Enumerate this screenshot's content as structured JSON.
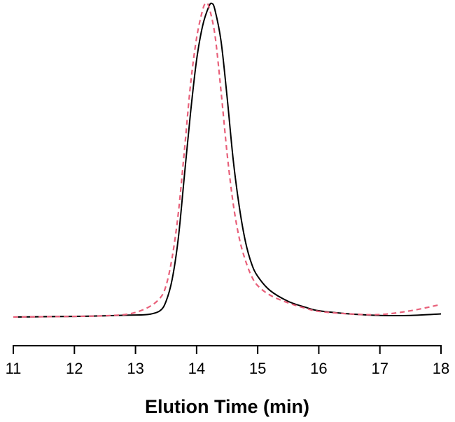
{
  "chart_data": {
    "type": "line",
    "title": "",
    "xlabel": "Elution Time (min)",
    "ylabel": "",
    "xlim": [
      11,
      18
    ],
    "ylim": [
      0,
      1.0
    ],
    "xticks": [
      "11",
      "12",
      "13",
      "14",
      "15",
      "16",
      "17",
      "18"
    ],
    "grid": false,
    "legend": "none",
    "series": [
      {
        "color": "#000000",
        "style": "solid",
        "x": [
          11.0,
          11.5,
          12.0,
          12.5,
          12.9,
          13.2,
          13.4,
          13.5,
          13.6,
          13.7,
          13.8,
          13.9,
          14.0,
          14.1,
          14.2,
          14.25,
          14.3,
          14.4,
          14.5,
          14.6,
          14.7,
          14.8,
          14.9,
          15.0,
          15.2,
          15.5,
          15.8,
          16.0,
          16.5,
          17.0,
          17.5,
          18.0
        ],
        "y": [
          0.0,
          0.001,
          0.002,
          0.004,
          0.006,
          0.008,
          0.02,
          0.05,
          0.12,
          0.25,
          0.45,
          0.65,
          0.82,
          0.93,
          0.99,
          1.0,
          0.98,
          0.88,
          0.7,
          0.5,
          0.35,
          0.24,
          0.17,
          0.13,
          0.085,
          0.05,
          0.03,
          0.02,
          0.01,
          0.005,
          0.005,
          0.01
        ]
      },
      {
        "color": "#e8607a",
        "style": "dashed",
        "x": [
          11.0,
          11.5,
          12.0,
          12.5,
          12.9,
          13.2,
          13.4,
          13.5,
          13.6,
          13.7,
          13.8,
          13.9,
          14.0,
          14.1,
          14.15,
          14.2,
          14.3,
          14.4,
          14.5,
          14.6,
          14.7,
          14.8,
          14.9,
          15.0,
          15.2,
          15.5,
          15.8,
          16.0,
          16.5,
          17.0,
          17.5,
          18.0
        ],
        "y": [
          0.0,
          0.001,
          0.002,
          0.004,
          0.01,
          0.03,
          0.06,
          0.1,
          0.19,
          0.33,
          0.53,
          0.74,
          0.89,
          0.98,
          1.0,
          0.99,
          0.9,
          0.72,
          0.52,
          0.36,
          0.25,
          0.18,
          0.13,
          0.1,
          0.07,
          0.045,
          0.027,
          0.018,
          0.01,
          0.008,
          0.02,
          0.04
        ]
      }
    ]
  }
}
